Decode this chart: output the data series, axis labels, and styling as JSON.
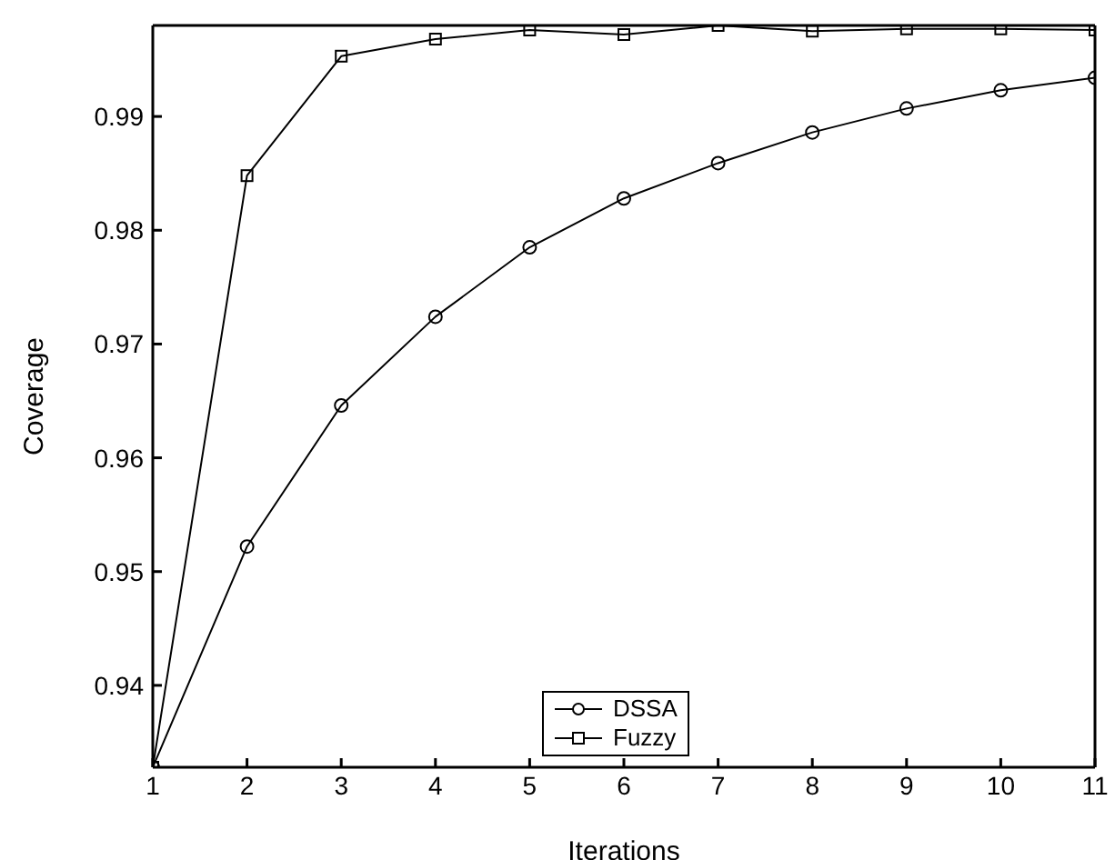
{
  "chart_data": {
    "type": "line",
    "xlabel": "Iterations",
    "ylabel": "Coverage",
    "x": [
      1,
      2,
      3,
      4,
      5,
      6,
      7,
      8,
      9,
      10,
      11
    ],
    "xlim": [
      1,
      11
    ],
    "xticks": [
      1,
      2,
      3,
      4,
      5,
      6,
      7,
      8,
      9,
      10,
      11
    ],
    "ylim": [
      0.9328,
      0.998
    ],
    "yticks": [
      0.94,
      0.95,
      0.96,
      0.97,
      0.98,
      0.99
    ],
    "grid": false,
    "legend": "bottom",
    "series": [
      {
        "name": "DSSA",
        "color": "#000000",
        "marker": "circle",
        "values": [
          0.9328,
          0.9522,
          0.9646,
          0.9724,
          0.9785,
          0.9828,
          0.9859,
          0.9886,
          0.9907,
          0.9923,
          0.9934
        ]
      },
      {
        "name": "Fuzzy",
        "color": "#000000",
        "marker": "square",
        "values": [
          0.9328,
          0.9848,
          0.9953,
          0.9968,
          0.9976,
          0.9972,
          0.998,
          0.9975,
          0.9977,
          0.9977,
          0.9976
        ]
      }
    ]
  }
}
